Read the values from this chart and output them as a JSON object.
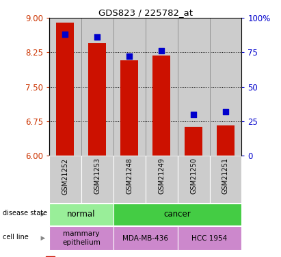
{
  "title": "GDS823 / 225782_at",
  "samples": [
    "GSM21252",
    "GSM21253",
    "GSM21248",
    "GSM21249",
    "GSM21250",
    "GSM21251"
  ],
  "bar_values": [
    8.9,
    8.45,
    8.07,
    8.18,
    6.62,
    6.65
  ],
  "percentile_values": [
    88,
    86,
    72,
    76,
    30,
    32
  ],
  "ylim_left": [
    6,
    9
  ],
  "ylim_right": [
    0,
    100
  ],
  "yticks_left": [
    6,
    6.75,
    7.5,
    8.25,
    9
  ],
  "yticks_right": [
    0,
    25,
    50,
    75,
    100
  ],
  "bar_color": "#cc1100",
  "dot_color": "#0000cc",
  "bar_width": 0.55,
  "subplot_bg": "#cccccc",
  "grid_color": "black",
  "left_label_color": "#cc3300",
  "right_label_color": "#0000cc",
  "ds_groups": [
    {
      "label": "normal",
      "cols": [
        0,
        1
      ],
      "color": "#99ee99"
    },
    {
      "label": "cancer",
      "cols": [
        2,
        3,
        4,
        5
      ],
      "color": "#44cc44"
    }
  ],
  "cl_groups": [
    {
      "label": "mammary\nepithelium",
      "cols": [
        0,
        1
      ],
      "color": "#cc88cc"
    },
    {
      "label": "MDA-MB-436",
      "cols": [
        2,
        3
      ],
      "color": "#cc88cc"
    },
    {
      "label": "HCC 1954",
      "cols": [
        4,
        5
      ],
      "color": "#cc88cc"
    }
  ]
}
